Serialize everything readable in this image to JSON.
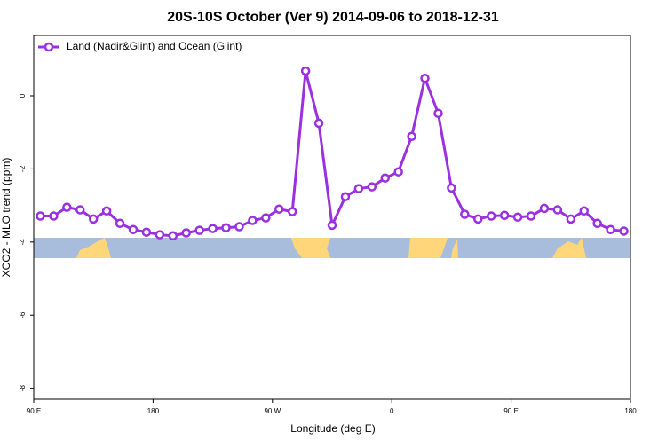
{
  "chart_data": {
    "type": "line",
    "title": "20S-10S October (Ver 9)   2014-09-06 to 2018-12-31",
    "x_label": "Longitude (deg E)",
    "y_label": "XCO2 - MLO trend (ppm)",
    "x": [
      95,
      105,
      115,
      125,
      135,
      145,
      155,
      165,
      175,
      185,
      195,
      205,
      215,
      225,
      235,
      245,
      255,
      265,
      275,
      285,
      295,
      305,
      315,
      325,
      335,
      345,
      355,
      365,
      375,
      385,
      395,
      405,
      415,
      425,
      435,
      445,
      455,
      465,
      475,
      485,
      495,
      505,
      515,
      525,
      535
    ],
    "series": [
      {
        "name": "Land (Nadir&Glint) and Ocean (Glint)",
        "color": "#9b30e0",
        "values": [
          -3.29,
          -3.29,
          -3.05,
          -3.12,
          -3.37,
          -3.15,
          -3.49,
          -3.66,
          -3.73,
          -3.8,
          -3.83,
          -3.75,
          -3.68,
          -3.63,
          -3.61,
          -3.58,
          -3.41,
          -3.34,
          -3.1,
          -3.17,
          0.68,
          -0.75,
          -3.54,
          -2.76,
          -2.54,
          -2.49,
          -2.25,
          -2.08,
          -1.11,
          0.48,
          -0.48,
          -2.52,
          -3.24,
          -3.37,
          -3.29,
          -3.27,
          -3.32,
          -3.29,
          -3.08,
          -3.12,
          -3.37,
          -3.15,
          -3.49,
          -3.66,
          -3.7
        ]
      }
    ],
    "xlim": [
      90,
      540
    ],
    "ylim": [
      -8.3,
      1.65
    ],
    "xticks": [
      {
        "value": 90,
        "label": "90 E"
      },
      {
        "value": 180,
        "label": "180"
      },
      {
        "value": 270,
        "label": "90 W"
      },
      {
        "value": 360,
        "label": "0"
      },
      {
        "value": 450,
        "label": "90 E"
      },
      {
        "value": 540,
        "label": "180"
      }
    ],
    "yticks": [
      -8,
      -6,
      -4,
      -2,
      0
    ],
    "legend": "top-left"
  }
}
